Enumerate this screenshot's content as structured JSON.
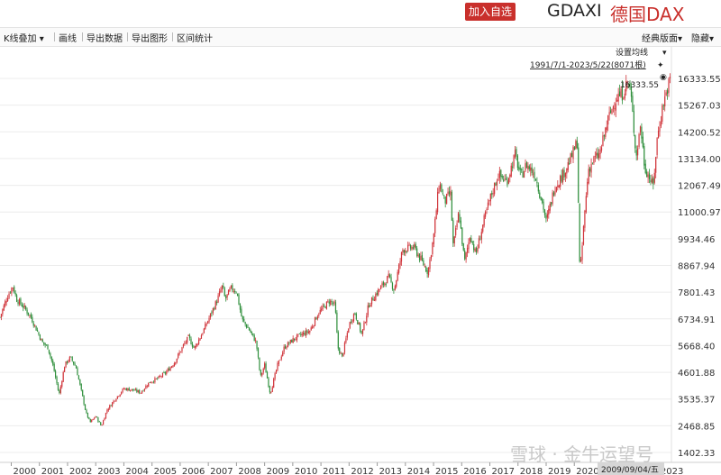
{
  "header": {
    "add_watchlist": "加入自选",
    "symbol": "GDAXI",
    "name": "德国DAX"
  },
  "toolbar": {
    "items": [
      "K线叠加",
      "画线",
      "导出数据",
      "导出图形",
      "区间统计"
    ],
    "right_items": [
      "经典版面",
      "隐藏"
    ]
  },
  "colors": {
    "up": "#d0343a",
    "down": "#2f8f3c",
    "accent": "#c9302c"
  },
  "overlay": {
    "ma_setting": "设置均线",
    "range": "1991/7/1-2023/5/22(8071根)",
    "max_label": "16333.55",
    "crosshair_date": "2009/09/04/五",
    "watermark": "雪球 · 金牛运望号"
  },
  "chart_data": {
    "type": "candlestick",
    "title": "",
    "y_ticks": [
      "16333.55",
      "15267.03",
      "14200.52",
      "13134.00",
      "12067.49",
      "11000.97",
      "9934.46",
      "8867.94",
      "7801.43",
      "6734.91",
      "5668.40",
      "4601.88",
      "3535.37",
      "2468.85",
      "1402.33"
    ],
    "ylim": [
      1402.33,
      16333.55
    ],
    "x_ticks": [
      "2000",
      "2001",
      "2002",
      "2003",
      "2004",
      "2005",
      "2006",
      "2007",
      "2008",
      "2009",
      "2010",
      "2011",
      "2012",
      "2013",
      "2014",
      "2015",
      "2016",
      "2017",
      "2018",
      "2019",
      "2020",
      "2021",
      "2022",
      "2023"
    ],
    "xlim": [
      1999.6,
      2023.45
    ],
    "series": [
      {
        "values_x_y": [
          [
            1999.6,
            6800
          ],
          [
            1999.85,
            7600
          ],
          [
            2000.05,
            8050
          ],
          [
            2000.2,
            7500
          ],
          [
            2000.45,
            7200
          ],
          [
            2000.7,
            6800
          ],
          [
            2000.9,
            6300
          ],
          [
            2001.1,
            5800
          ],
          [
            2001.3,
            5600
          ],
          [
            2001.5,
            4800
          ],
          [
            2001.7,
            3700
          ],
          [
            2001.9,
            4900
          ],
          [
            2002.1,
            5200
          ],
          [
            2002.3,
            4800
          ],
          [
            2002.5,
            3800
          ],
          [
            2002.65,
            3000
          ],
          [
            2002.8,
            2600
          ],
          [
            2003.0,
            2850
          ],
          [
            2003.2,
            2450
          ],
          [
            2003.4,
            3100
          ],
          [
            2003.7,
            3550
          ],
          [
            2004.0,
            3950
          ],
          [
            2004.3,
            3900
          ],
          [
            2004.6,
            3800
          ],
          [
            2004.9,
            4200
          ],
          [
            2005.2,
            4350
          ],
          [
            2005.5,
            4600
          ],
          [
            2005.8,
            5000
          ],
          [
            2006.1,
            5650
          ],
          [
            2006.3,
            6000
          ],
          [
            2006.5,
            5550
          ],
          [
            2006.8,
            6200
          ],
          [
            2007.0,
            6700
          ],
          [
            2007.3,
            7450
          ],
          [
            2007.5,
            8050
          ],
          [
            2007.6,
            7500
          ],
          [
            2007.8,
            7950
          ],
          [
            2008.0,
            7850
          ],
          [
            2008.2,
            6700
          ],
          [
            2008.45,
            6300
          ],
          [
            2008.7,
            5800
          ],
          [
            2008.85,
            4400
          ],
          [
            2009.0,
            4900
          ],
          [
            2009.2,
            3750
          ],
          [
            2009.45,
            4850
          ],
          [
            2009.7,
            5600
          ],
          [
            2010.0,
            5900
          ],
          [
            2010.3,
            6100
          ],
          [
            2010.6,
            6250
          ],
          [
            2010.9,
            6950
          ],
          [
            2011.1,
            7200
          ],
          [
            2011.3,
            7450
          ],
          [
            2011.5,
            7300
          ],
          [
            2011.6,
            5600
          ],
          [
            2011.75,
            5200
          ],
          [
            2012.0,
            6500
          ],
          [
            2012.2,
            7000
          ],
          [
            2012.45,
            6100
          ],
          [
            2012.7,
            7300
          ],
          [
            2013.0,
            7800
          ],
          [
            2013.4,
            8400
          ],
          [
            2013.6,
            7900
          ],
          [
            2013.9,
            9500
          ],
          [
            2014.3,
            9600
          ],
          [
            2014.55,
            9100
          ],
          [
            2014.8,
            8600
          ],
          [
            2015.0,
            10000
          ],
          [
            2015.2,
            12200
          ],
          [
            2015.4,
            11400
          ],
          [
            2015.6,
            11800
          ],
          [
            2015.7,
            9600
          ],
          [
            2015.9,
            11000
          ],
          [
            2016.1,
            9000
          ],
          [
            2016.3,
            10100
          ],
          [
            2016.5,
            9300
          ],
          [
            2016.8,
            10700
          ],
          [
            2017.0,
            11500
          ],
          [
            2017.3,
            12500
          ],
          [
            2017.6,
            12200
          ],
          [
            2017.9,
            13300
          ],
          [
            2018.1,
            12400
          ],
          [
            2018.3,
            12900
          ],
          [
            2018.6,
            12500
          ],
          [
            2018.9,
            11200
          ],
          [
            2019.0,
            10600
          ],
          [
            2019.3,
            12000
          ],
          [
            2019.6,
            12500
          ],
          [
            2019.9,
            13200
          ],
          [
            2020.1,
            13800
          ],
          [
            2020.2,
            8400
          ],
          [
            2020.35,
            10700
          ],
          [
            2020.5,
            12700
          ],
          [
            2020.7,
            13100
          ],
          [
            2020.9,
            13300
          ],
          [
            2021.2,
            14700
          ],
          [
            2021.5,
            15600
          ],
          [
            2021.7,
            15700
          ],
          [
            2021.9,
            16200
          ],
          [
            2022.0,
            15800
          ],
          [
            2022.2,
            13200
          ],
          [
            2022.35,
            14500
          ],
          [
            2022.5,
            12800
          ],
          [
            2022.7,
            12300
          ],
          [
            2022.8,
            12000
          ],
          [
            2022.95,
            14000
          ],
          [
            2023.15,
            15300
          ],
          [
            2023.3,
            15900
          ],
          [
            2023.4,
            16300
          ]
        ]
      }
    ]
  }
}
